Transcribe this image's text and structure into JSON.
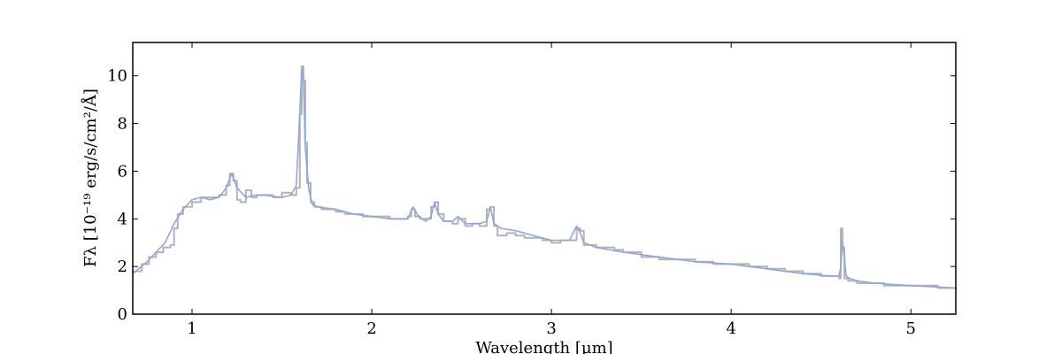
{
  "chart_data": {
    "type": "line",
    "xlabel": "Wavelength [μm]",
    "ylabel": "Fλ [10⁻¹⁹ erg/s/cm²/Å]",
    "xlim": [
      0.67,
      5.25
    ],
    "ylim": [
      0,
      11.4
    ],
    "x_ticks": [
      1,
      2,
      3,
      4,
      5
    ],
    "y_ticks": [
      0,
      2,
      4,
      6,
      8,
      10
    ],
    "grid": false,
    "legend": "none",
    "series": [
      {
        "color": "#b3b3b3",
        "style": "steps",
        "x": [
          0.67,
          0.72,
          0.76,
          0.8,
          0.84,
          0.88,
          0.9,
          0.92,
          0.95,
          1.0,
          1.05,
          1.1,
          1.15,
          1.19,
          1.21,
          1.23,
          1.25,
          1.27,
          1.3,
          1.33,
          1.36,
          1.4,
          1.45,
          1.5,
          1.55,
          1.58,
          1.6,
          1.61,
          1.62,
          1.63,
          1.64,
          1.66,
          1.68,
          1.72,
          1.76,
          1.8,
          1.85,
          1.9,
          1.95,
          2.0,
          2.05,
          2.1,
          2.15,
          2.2,
          2.22,
          2.24,
          2.27,
          2.3,
          2.33,
          2.35,
          2.37,
          2.4,
          2.45,
          2.48,
          2.52,
          2.56,
          2.6,
          2.64,
          2.66,
          2.68,
          2.7,
          2.75,
          2.8,
          2.85,
          2.9,
          2.95,
          3.0,
          3.05,
          3.1,
          3.14,
          3.16,
          3.18,
          3.2,
          3.25,
          3.3,
          3.35,
          3.4,
          3.5,
          3.6,
          3.7,
          3.8,
          3.9,
          4.0,
          4.1,
          4.2,
          4.3,
          4.4,
          4.5,
          4.55,
          4.6,
          4.61,
          4.62,
          4.63,
          4.65,
          4.7,
          4.75,
          4.8,
          4.85,
          4.9,
          5.0,
          5.1,
          5.15,
          5.2,
          5.25
        ],
        "y": [
          1.8,
          2.1,
          2.4,
          2.6,
          2.8,
          2.9,
          3.6,
          4.2,
          4.5,
          4.7,
          4.9,
          4.9,
          5.0,
          5.4,
          5.9,
          5.6,
          4.8,
          4.7,
          5.2,
          4.9,
          5.0,
          5.0,
          4.9,
          5.1,
          5.0,
          5.3,
          8.4,
          10.4,
          9.8,
          7.2,
          5.5,
          4.7,
          4.5,
          4.4,
          4.4,
          4.3,
          4.2,
          4.2,
          4.1,
          4.1,
          4.1,
          4.0,
          4.0,
          4.1,
          4.4,
          4.1,
          4.0,
          4.0,
          4.5,
          4.7,
          4.2,
          3.9,
          3.8,
          4.0,
          3.7,
          3.8,
          3.7,
          4.4,
          4.5,
          3.7,
          3.3,
          3.4,
          3.3,
          3.2,
          3.2,
          3.1,
          3.0,
          3.1,
          3.1,
          3.6,
          3.5,
          2.9,
          2.9,
          2.8,
          2.8,
          2.7,
          2.6,
          2.4,
          2.3,
          2.3,
          2.2,
          2.1,
          2.1,
          2.0,
          1.9,
          1.8,
          1.7,
          1.6,
          1.6,
          1.5,
          3.6,
          2.8,
          1.5,
          1.4,
          1.3,
          1.3,
          1.3,
          1.2,
          1.2,
          1.2,
          1.2,
          1.1,
          1.1,
          1.0
        ]
      },
      {
        "color": "#8ea9d8",
        "style": "smooth",
        "x": [
          0.67,
          0.75,
          0.85,
          0.9,
          0.95,
          1.0,
          1.05,
          1.1,
          1.15,
          1.19,
          1.22,
          1.25,
          1.3,
          1.35,
          1.4,
          1.5,
          1.55,
          1.58,
          1.6,
          1.61,
          1.62,
          1.63,
          1.65,
          1.67,
          1.7,
          1.8,
          1.9,
          2.0,
          2.1,
          2.2,
          2.23,
          2.26,
          2.3,
          2.33,
          2.35,
          2.37,
          2.4,
          2.45,
          2.48,
          2.52,
          2.6,
          2.64,
          2.66,
          2.68,
          2.72,
          2.8,
          2.9,
          3.0,
          3.1,
          3.14,
          3.16,
          3.18,
          3.25,
          3.4,
          3.6,
          3.8,
          4.0,
          4.2,
          4.4,
          4.55,
          4.6,
          4.61,
          4.62,
          4.63,
          4.64,
          4.66,
          4.7,
          4.8,
          5.0,
          5.25
        ],
        "y": [
          1.7,
          2.2,
          3.0,
          3.8,
          4.4,
          4.8,
          4.9,
          4.8,
          4.9,
          5.3,
          5.9,
          5.3,
          4.9,
          5.0,
          5.0,
          4.9,
          5.0,
          5.4,
          8.5,
          10.3,
          9.9,
          7.0,
          5.2,
          4.6,
          4.5,
          4.4,
          4.2,
          4.1,
          4.0,
          4.0,
          4.5,
          4.1,
          3.9,
          4.1,
          4.7,
          4.2,
          3.9,
          3.9,
          4.1,
          3.8,
          3.8,
          3.9,
          4.5,
          3.8,
          3.6,
          3.5,
          3.3,
          3.1,
          3.1,
          3.7,
          3.4,
          3.0,
          2.8,
          2.6,
          2.4,
          2.2,
          2.1,
          1.9,
          1.7,
          1.6,
          1.6,
          2.0,
          3.0,
          2.4,
          1.6,
          1.5,
          1.4,
          1.3,
          1.2,
          1.1
        ]
      }
    ]
  }
}
